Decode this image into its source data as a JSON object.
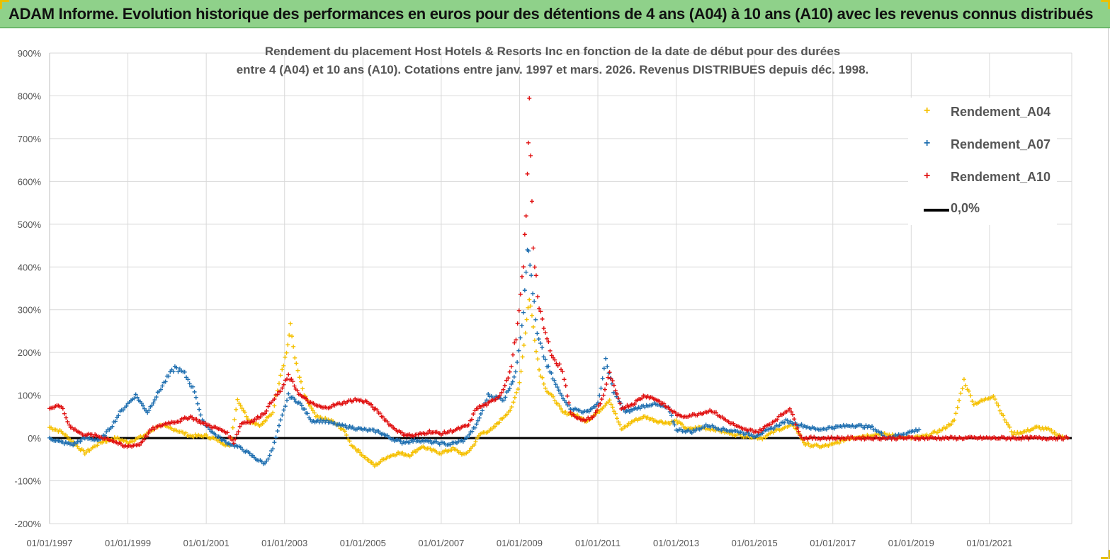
{
  "banner": {
    "title": "ADAM Informe. Evolution historique des performances en euros pour des détentions de 4 ans (A04) à 10 ans (A10) avec les revenus connus distribués"
  },
  "colors": {
    "banner_bg": "#8fd18a",
    "a04": "#f5c000",
    "a07": "#1f6fb0",
    "a10": "#e01010",
    "zero_line": "#000000",
    "grid": "#d9d9d9"
  },
  "chart_data": {
    "type": "scatter",
    "title_line1": "Rendement du placement Host Hotels & Resorts Inc en fonction de la date de début pour des durées",
    "title_line2": "entre 4 (A04) et 10 ans (A10). Cotations entre janv. 1997 et mars. 2026. Revenus DISTRIBUES depuis déc. 1998.",
    "ylim": [
      -200,
      900
    ],
    "y_unit": "%",
    "y_ticks": [
      "900%",
      "800%",
      "700%",
      "600%",
      "500%",
      "400%",
      "300%",
      "200%",
      "100%",
      "0%",
      "-100%",
      "-200%"
    ],
    "x_range": [
      1997.0,
      2023.1
    ],
    "x_ticks": [
      "01/01/1997",
      "01/01/1999",
      "01/01/2001",
      "01/01/2003",
      "01/01/2005",
      "01/01/2007",
      "01/01/2009",
      "01/01/2011",
      "01/01/2013",
      "01/01/2015",
      "01/01/2017",
      "01/01/2019",
      "01/01/2021"
    ],
    "grid": true,
    "legend_position": "top-right",
    "series": [
      {
        "name": "Rendement_A04",
        "marker": "+",
        "color": "#f5c000",
        "points": [
          [
            1997.0,
            25
          ],
          [
            1997.3,
            15
          ],
          [
            1997.6,
            -10
          ],
          [
            1997.9,
            -35
          ],
          [
            1998.3,
            -10
          ],
          [
            1998.7,
            0
          ],
          [
            1999.0,
            -10
          ],
          [
            1999.4,
            5
          ],
          [
            1999.8,
            30
          ],
          [
            2000.2,
            20
          ],
          [
            2000.6,
            5
          ],
          [
            2001.0,
            5
          ],
          [
            2001.3,
            -5
          ],
          [
            2001.6,
            -20
          ],
          [
            2001.8,
            90
          ],
          [
            2002.1,
            40
          ],
          [
            2002.4,
            30
          ],
          [
            2002.7,
            60
          ],
          [
            2002.9,
            150
          ],
          [
            2003.05,
            200
          ],
          [
            2003.15,
            260
          ],
          [
            2003.3,
            170
          ],
          [
            2003.5,
            100
          ],
          [
            2003.8,
            50
          ],
          [
            2004.2,
            40
          ],
          [
            2004.5,
            20
          ],
          [
            2004.7,
            -15
          ],
          [
            2005.0,
            -40
          ],
          [
            2005.3,
            -65
          ],
          [
            2005.6,
            -45
          ],
          [
            2005.9,
            -35
          ],
          [
            2006.2,
            -40
          ],
          [
            2006.5,
            -20
          ],
          [
            2006.8,
            -30
          ],
          [
            2007.0,
            -35
          ],
          [
            2007.3,
            -25
          ],
          [
            2007.6,
            -40
          ],
          [
            2007.8,
            -20
          ],
          [
            2008.0,
            10
          ],
          [
            2008.3,
            20
          ],
          [
            2008.6,
            50
          ],
          [
            2008.8,
            70
          ],
          [
            2009.0,
            130
          ],
          [
            2009.15,
            250
          ],
          [
            2009.25,
            330
          ],
          [
            2009.35,
            260
          ],
          [
            2009.5,
            160
          ],
          [
            2009.7,
            110
          ],
          [
            2009.9,
            90
          ],
          [
            2010.1,
            60
          ],
          [
            2010.4,
            55
          ],
          [
            2010.7,
            40
          ],
          [
            2011.0,
            60
          ],
          [
            2011.3,
            90
          ],
          [
            2011.6,
            20
          ],
          [
            2011.9,
            40
          ],
          [
            2012.2,
            50
          ],
          [
            2012.5,
            40
          ],
          [
            2012.8,
            35
          ],
          [
            2013.0,
            40
          ],
          [
            2013.3,
            20
          ],
          [
            2013.6,
            25
          ],
          [
            2014.0,
            20
          ],
          [
            2014.4,
            10
          ],
          [
            2014.8,
            5
          ],
          [
            2015.2,
            0
          ],
          [
            2015.6,
            20
          ],
          [
            2016.0,
            30
          ],
          [
            2016.3,
            -15
          ],
          [
            2016.7,
            -20
          ],
          [
            2017.0,
            -15
          ],
          [
            2017.4,
            0
          ],
          [
            2017.8,
            5
          ],
          [
            2018.2,
            10
          ],
          [
            2018.6,
            5
          ],
          [
            2019.0,
            0
          ],
          [
            2019.4,
            5
          ],
          [
            2019.8,
            20
          ],
          [
            2020.1,
            40
          ],
          [
            2020.35,
            135
          ],
          [
            2020.6,
            80
          ],
          [
            2020.9,
            90
          ],
          [
            2021.1,
            100
          ],
          [
            2021.35,
            50
          ],
          [
            2021.6,
            10
          ],
          [
            2021.9,
            15
          ],
          [
            2022.2,
            25
          ],
          [
            2022.5,
            20
          ],
          [
            2022.9,
            0
          ]
        ]
      },
      {
        "name": "Rendement_A07",
        "marker": "+",
        "color": "#1f6fb0",
        "points": [
          [
            1997.0,
            0
          ],
          [
            1997.3,
            -10
          ],
          [
            1997.6,
            -15
          ],
          [
            1997.9,
            0
          ],
          [
            1998.3,
            -5
          ],
          [
            1998.6,
            30
          ],
          [
            1998.8,
            60
          ],
          [
            1999.0,
            80
          ],
          [
            1999.2,
            100
          ],
          [
            1999.5,
            60
          ],
          [
            1999.8,
            110
          ],
          [
            2000.0,
            140
          ],
          [
            2000.2,
            165
          ],
          [
            2000.45,
            150
          ],
          [
            2000.7,
            110
          ],
          [
            2000.9,
            40
          ],
          [
            2001.2,
            10
          ],
          [
            2001.5,
            -10
          ],
          [
            2001.8,
            -20
          ],
          [
            2002.0,
            -30
          ],
          [
            2002.3,
            -50
          ],
          [
            2002.5,
            -60
          ],
          [
            2002.7,
            -25
          ],
          [
            2002.9,
            40
          ],
          [
            2003.1,
            100
          ],
          [
            2003.4,
            80
          ],
          [
            2003.7,
            40
          ],
          [
            2004.0,
            40
          ],
          [
            2004.4,
            30
          ],
          [
            2004.7,
            25
          ],
          [
            2005.0,
            20
          ],
          [
            2005.4,
            15
          ],
          [
            2005.7,
            0
          ],
          [
            2006.0,
            -10
          ],
          [
            2006.4,
            -5
          ],
          [
            2006.8,
            -10
          ],
          [
            2007.2,
            -15
          ],
          [
            2007.6,
            -5
          ],
          [
            2007.9,
            30
          ],
          [
            2008.2,
            100
          ],
          [
            2008.6,
            90
          ],
          [
            2008.9,
            150
          ],
          [
            2009.1,
            300
          ],
          [
            2009.2,
            450
          ],
          [
            2009.3,
            380
          ],
          [
            2009.45,
            240
          ],
          [
            2009.7,
            170
          ],
          [
            2010.0,
            110
          ],
          [
            2010.3,
            70
          ],
          [
            2010.7,
            60
          ],
          [
            2011.0,
            80
          ],
          [
            2011.2,
            180
          ],
          [
            2011.4,
            110
          ],
          [
            2011.7,
            60
          ],
          [
            2012.0,
            70
          ],
          [
            2012.4,
            80
          ],
          [
            2012.8,
            70
          ],
          [
            2013.0,
            20
          ],
          [
            2013.4,
            15
          ],
          [
            2013.8,
            30
          ],
          [
            2014.2,
            20
          ],
          [
            2014.6,
            15
          ],
          [
            2015.0,
            5
          ],
          [
            2015.4,
            20
          ],
          [
            2015.8,
            40
          ],
          [
            2016.2,
            30
          ],
          [
            2016.6,
            20
          ],
          [
            2017.0,
            25
          ],
          [
            2017.5,
            30
          ],
          [
            2018.0,
            25
          ],
          [
            2018.4,
            0
          ],
          [
            2018.8,
            10
          ],
          [
            2019.2,
            20
          ]
        ]
      },
      {
        "name": "Rendement_A10",
        "marker": "+",
        "color": "#e01010",
        "points": [
          [
            1997.0,
            70
          ],
          [
            1997.3,
            75
          ],
          [
            1997.5,
            30
          ],
          [
            1997.8,
            10
          ],
          [
            1998.2,
            5
          ],
          [
            1998.6,
            -5
          ],
          [
            1998.9,
            -20
          ],
          [
            1999.3,
            -15
          ],
          [
            1999.6,
            20
          ],
          [
            2000.0,
            35
          ],
          [
            2000.3,
            40
          ],
          [
            2000.6,
            50
          ],
          [
            2000.9,
            35
          ],
          [
            2001.2,
            25
          ],
          [
            2001.5,
            15
          ],
          [
            2001.7,
            -10
          ],
          [
            2001.9,
            35
          ],
          [
            2002.2,
            40
          ],
          [
            2002.5,
            60
          ],
          [
            2002.7,
            90
          ],
          [
            2002.9,
            110
          ],
          [
            2003.1,
            145
          ],
          [
            2003.4,
            100
          ],
          [
            2003.7,
            80
          ],
          [
            2004.0,
            70
          ],
          [
            2004.4,
            80
          ],
          [
            2004.8,
            90
          ],
          [
            2005.1,
            85
          ],
          [
            2005.4,
            60
          ],
          [
            2005.7,
            30
          ],
          [
            2006.0,
            10
          ],
          [
            2006.3,
            5
          ],
          [
            2006.7,
            15
          ],
          [
            2007.0,
            10
          ],
          [
            2007.4,
            20
          ],
          [
            2007.7,
            30
          ],
          [
            2007.9,
            70
          ],
          [
            2008.2,
            80
          ],
          [
            2008.5,
            100
          ],
          [
            2008.75,
            150
          ],
          [
            2008.95,
            260
          ],
          [
            2009.1,
            400
          ],
          [
            2009.2,
            600
          ],
          [
            2009.25,
            780
          ],
          [
            2009.35,
            450
          ],
          [
            2009.5,
            300
          ],
          [
            2009.7,
            230
          ],
          [
            2009.9,
            180
          ],
          [
            2010.1,
            160
          ],
          [
            2010.3,
            60
          ],
          [
            2010.6,
            40
          ],
          [
            2010.9,
            50
          ],
          [
            2011.1,
            90
          ],
          [
            2011.3,
            150
          ],
          [
            2011.6,
            70
          ],
          [
            2011.9,
            80
          ],
          [
            2012.2,
            100
          ],
          [
            2012.5,
            90
          ],
          [
            2012.8,
            70
          ],
          [
            2013.1,
            50
          ],
          [
            2013.5,
            55
          ],
          [
            2013.9,
            65
          ],
          [
            2014.3,
            40
          ],
          [
            2014.7,
            20
          ],
          [
            2015.1,
            15
          ],
          [
            2015.5,
            40
          ],
          [
            2015.9,
            70
          ],
          [
            2016.2,
            0
          ],
          [
            2016.6,
            0
          ],
          [
            2017.0,
            0
          ],
          [
            2017.5,
            0
          ],
          [
            2018.0,
            0
          ],
          [
            2018.5,
            0
          ],
          [
            2019.0,
            0
          ],
          [
            2019.5,
            0
          ],
          [
            2020.0,
            0
          ],
          [
            2020.5,
            0
          ],
          [
            2021.0,
            0
          ],
          [
            2021.5,
            0
          ],
          [
            2022.0,
            0
          ],
          [
            2022.5,
            0
          ],
          [
            2023.0,
            0
          ]
        ]
      }
    ],
    "reference_line": {
      "name": "0,0%",
      "value": 0
    }
  }
}
